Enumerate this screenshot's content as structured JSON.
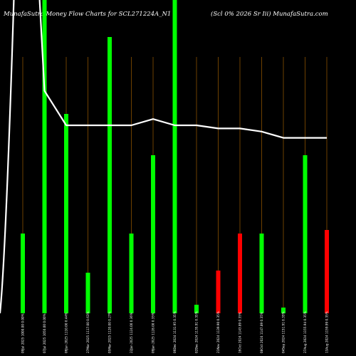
{
  "chart_data": {
    "type": "bar",
    "title_left": "MunafaSutra  Money Flow  Charts for SCL271224A_N1",
    "title_right": "(Scl 0% 2026  Sr Iii) MunafaSutra.com",
    "categories": [
      "09Jul 2025 1000.00 0.00%",
      "07Jul 2025 1050.00 0.00%",
      "06Jun 2025 1110.00 0.44%",
      "27Mar 2025 1117.00 0.63%",
      "05Mar 2025 1120.00 0.27%",
      "22Jan 2025 1124.00 0.36%",
      "09Jan 2025 1128.00 0.35%",
      "06Dec 2024 1131.95 0.35%",
      "02Dec 2024 1135.91 0.35%",
      "21Nov 2024 1139.90 0.35%",
      "16Oct 2024 1143.89 0.35%",
      "08Oct 2024 1147.89 0.35%",
      "04Sep 2024 1151.91 0.35%",
      "27Aug 2024 1155.94 0.35%",
      "13Aug 2024 1159.99 0.35%"
    ],
    "bar_values": [
      112,
      440,
      280,
      57,
      388,
      112,
      222,
      440,
      12,
      60,
      112,
      112,
      8,
      222,
      117
    ],
    "bar_colors": [
      "#00ff00",
      "#00ff00",
      "#00ff00",
      "#00ff00",
      "#00ff00",
      "#00ff00",
      "#00ff00",
      "#00ff00",
      "#00ff00",
      "#ff0000",
      "#ff0000",
      "#00ff00",
      "#00ff00",
      "#00ff00",
      "#ff0000"
    ],
    "bar_ylim": [
      0,
      440
    ],
    "line_name": "",
    "line_values": [
      2.0,
      0.71,
      0.6,
      0.6,
      0.6,
      0.6,
      0.62,
      0.6,
      0.6,
      0.59,
      0.59,
      0.58,
      0.56,
      0.56,
      0.56
    ],
    "line_ylim": [
      0,
      1
    ]
  },
  "colors": {
    "background": "#000000",
    "line": "#ffffff",
    "gridline": "#b86b00",
    "up_bar": "#00ff00",
    "down_bar": "#ff0000"
  }
}
